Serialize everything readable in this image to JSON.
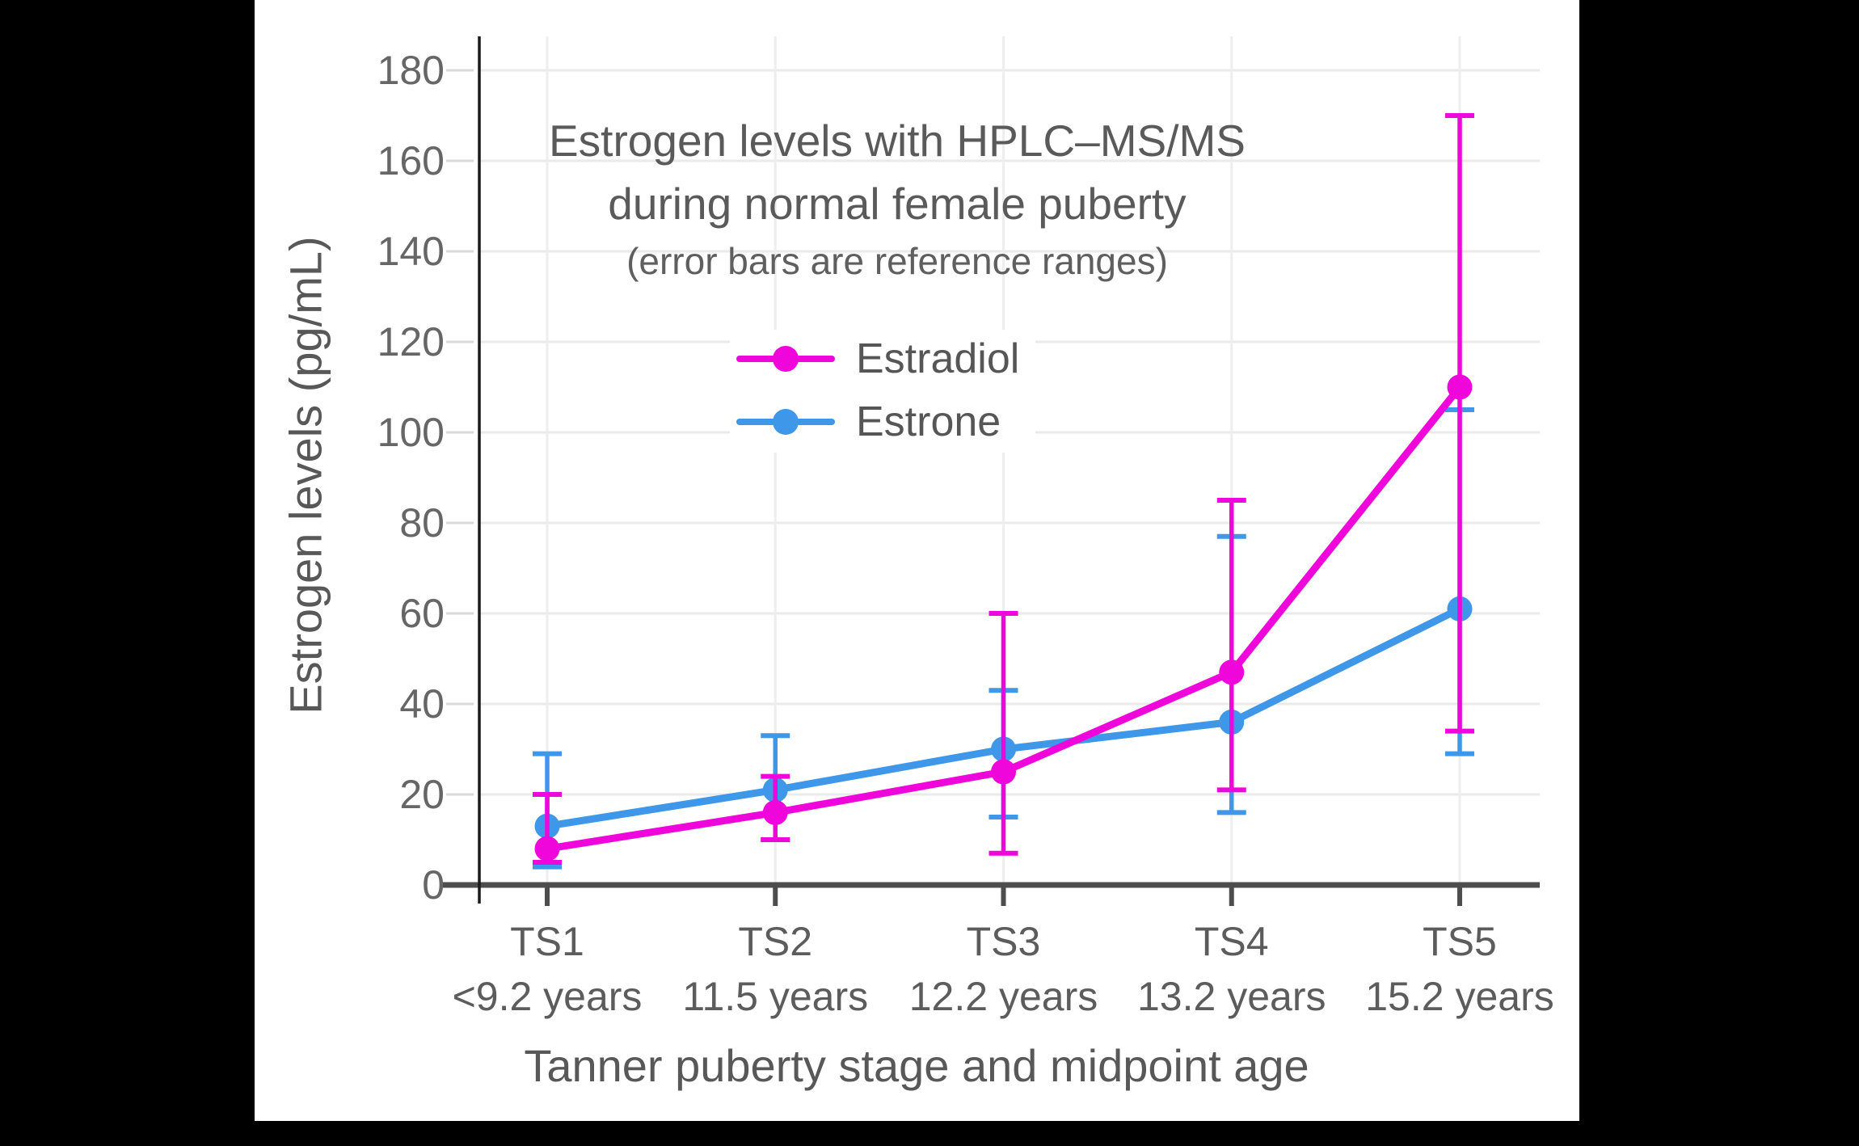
{
  "chart": {
    "title_line1": "Estrogen levels with HPLC–MS/MS",
    "title_line2": "during normal female puberty",
    "subtitle": "(error bars are reference ranges)",
    "x_axis_title": "Tanner puberty stage and midpoint age",
    "y_axis_title": "Estrogen levels (pg/mL)"
  },
  "chart_data": {
    "type": "line",
    "title": "Estrogen levels with HPLC–MS/MS during normal female puberty",
    "subtitle": "(error bars are reference ranges)",
    "xlabel": "Tanner puberty stage and midpoint age",
    "ylabel": "Estrogen levels (pg/mL)",
    "categories": [
      "TS1",
      "TS2",
      "TS3",
      "TS4",
      "TS5"
    ],
    "category_sublabels": [
      "<9.2 years",
      "11.5 years",
      "12.2 years",
      "13.2 years",
      "15.2 years"
    ],
    "y_ticks": [
      0,
      20,
      40,
      60,
      80,
      100,
      120,
      140,
      160,
      180
    ],
    "ylim": [
      0,
      187
    ],
    "grid": true,
    "legend_position": "upper center",
    "error_bar_meaning": "reference ranges",
    "series": [
      {
        "name": "Estrone",
        "color": "#3E97E8",
        "values": [
          13,
          21,
          30,
          36,
          61
        ],
        "error_low": [
          4,
          10,
          15,
          16,
          29
        ],
        "error_high": [
          29,
          33,
          43,
          77,
          105
        ]
      },
      {
        "name": "Estradiol",
        "color": "#EE06DB",
        "values": [
          8,
          16,
          25,
          47,
          110
        ],
        "error_low": [
          5,
          10,
          7,
          21,
          34
        ],
        "error_high": [
          20,
          24,
          60,
          85,
          170
        ]
      }
    ]
  }
}
